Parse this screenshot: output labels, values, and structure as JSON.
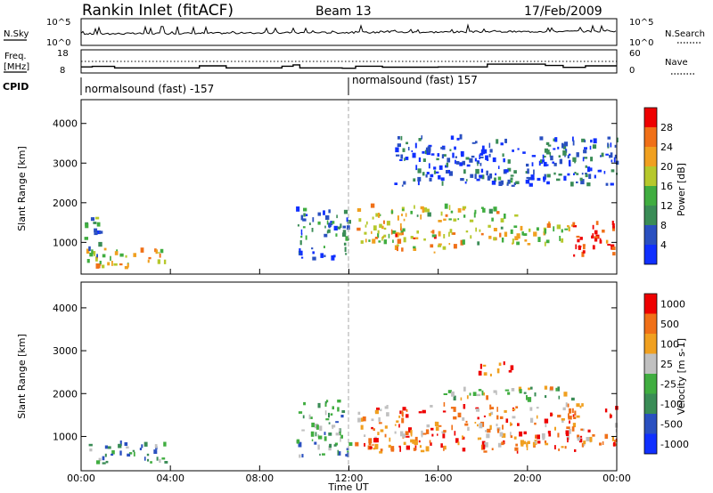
{
  "header": {
    "station": "Rankin Inlet (fitACF)",
    "beam": "Beam 13",
    "date": "17/Feb/2009"
  },
  "chart_data": [
    {
      "type": "line",
      "panel": "nsky_nsearch",
      "left_label": "N.Sky",
      "right_label": "N.Search",
      "left_ticks": [
        "10^5",
        "10^0"
      ],
      "right_ticks": [
        "10^5",
        "10^0"
      ]
    },
    {
      "type": "line",
      "panel": "freq_nave",
      "left_label_lines": [
        "Freq.",
        "[MHz]"
      ],
      "right_label": "Nave",
      "left_ticks": [
        "18",
        "8"
      ],
      "right_ticks": [
        "60",
        "0"
      ],
      "freq_steps": [
        {
          "t": 0.0,
          "v": 11.6
        },
        {
          "t": 0.5,
          "v": 11.9
        },
        {
          "t": 1.5,
          "v": 11.0
        },
        {
          "t": 5.3,
          "v": 12.2
        },
        {
          "t": 6.5,
          "v": 11.0
        },
        {
          "t": 9.0,
          "v": 12.0
        },
        {
          "t": 9.5,
          "v": 12.8
        },
        {
          "t": 9.8,
          "v": 11.0
        },
        {
          "t": 11.7,
          "v": 10.8
        },
        {
          "t": 12.3,
          "v": 12.0
        },
        {
          "t": 13.5,
          "v": 11.4
        },
        {
          "t": 16.0,
          "v": 11.6
        },
        {
          "t": 18.2,
          "v": 13.2
        },
        {
          "t": 20.8,
          "v": 12.4
        },
        {
          "t": 21.6,
          "v": 11.3
        },
        {
          "t": 22.6,
          "v": 12.2
        },
        {
          "t": 24.0,
          "v": 12.2
        }
      ]
    },
    {
      "type": "table",
      "panel": "cpid",
      "label": "CPID",
      "segments": [
        {
          "t_start": 0.0,
          "t_end": 12.0,
          "label": "normalsound (fast) -157"
        },
        {
          "t_start": 12.0,
          "t_end": 24.0,
          "label": "normalsound (fast) 157"
        }
      ]
    },
    {
      "type": "heatmap",
      "panel": "power",
      "ylabel": "Slant Range [km]",
      "ylim": [
        200,
        4600
      ],
      "yticks": [
        1000,
        2000,
        3000,
        4000
      ],
      "colorbar_label": "Power [dB]",
      "colorbar_ticks": [
        4,
        8,
        12,
        16,
        20,
        24,
        28
      ],
      "colorbar_range": [
        0,
        32
      ],
      "colorbar_colors": [
        "#1030ff",
        "#2a50c0",
        "#3a8c56",
        "#40ad40",
        "#b6c82c",
        "#f0a020",
        "#f07018",
        "#ee0000"
      ],
      "regions": [
        {
          "t": [
            0.2,
            3.8
          ],
          "r": [
            300,
            800
          ],
          "level": 0.6
        },
        {
          "t": [
            0.0,
            0.8
          ],
          "r": [
            600,
            1600
          ],
          "level": 0.3
        },
        {
          "t": [
            9.6,
            12.0
          ],
          "r": [
            500,
            1800
          ],
          "level": 0.25
        },
        {
          "t": [
            12.2,
            14.5
          ],
          "r": [
            900,
            1900
          ],
          "level": 0.6
        },
        {
          "t": [
            14.0,
            17.0
          ],
          "r": [
            700,
            1250
          ],
          "level": 0.7
        },
        {
          "t": [
            14.0,
            19.5
          ],
          "r": [
            1500,
            1850
          ],
          "level": 0.55
        },
        {
          "t": [
            17.0,
            22.0
          ],
          "r": [
            900,
            1400
          ],
          "level": 0.55
        },
        {
          "t": [
            22.0,
            24.0
          ],
          "r": [
            600,
            1500
          ],
          "level": 0.95
        },
        {
          "t": [
            17.8,
            19.4
          ],
          "r": [
            2400,
            2700
          ],
          "level": 0.4
        },
        {
          "t": [
            14.0,
            24.0
          ],
          "r": [
            2400,
            3600
          ],
          "level": 0.15
        }
      ]
    },
    {
      "type": "heatmap",
      "panel": "velocity",
      "ylabel": "Slant Range [km]",
      "ylim": [
        200,
        4600
      ],
      "yticks": [
        1000,
        2000,
        3000,
        4000
      ],
      "xlabel": "Time UT",
      "xticks": [
        "00:00",
        "04:00",
        "08:00",
        "12:00",
        "16:00",
        "20:00",
        "00:00"
      ],
      "colorbar_label": "Velocity [m s-1]",
      "colorbar_ticks": [
        "1000",
        "500",
        "100",
        "25",
        "-25",
        "-100",
        "-500",
        "-1000"
      ],
      "colorbar_colors": [
        "#1030ff",
        "#2a50c0",
        "#3a8c56",
        "#40ad40",
        "#c0c0c0",
        "#f0a020",
        "#f07018",
        "#ee0000"
      ],
      "regions": [
        {
          "t": [
            0.2,
            3.8
          ],
          "r": [
            300,
            800
          ],
          "level": 0.35
        },
        {
          "t": [
            9.6,
            12.0
          ],
          "r": [
            500,
            1800
          ],
          "level": 0.4
        },
        {
          "t": [
            12.2,
            24.0
          ],
          "r": [
            600,
            1700
          ],
          "level": 0.75
        },
        {
          "t": [
            16.0,
            22.0
          ],
          "r": [
            1800,
            2100
          ],
          "level": 0.55
        },
        {
          "t": [
            17.8,
            19.4
          ],
          "r": [
            2400,
            2700
          ],
          "level": 0.8
        }
      ]
    }
  ]
}
